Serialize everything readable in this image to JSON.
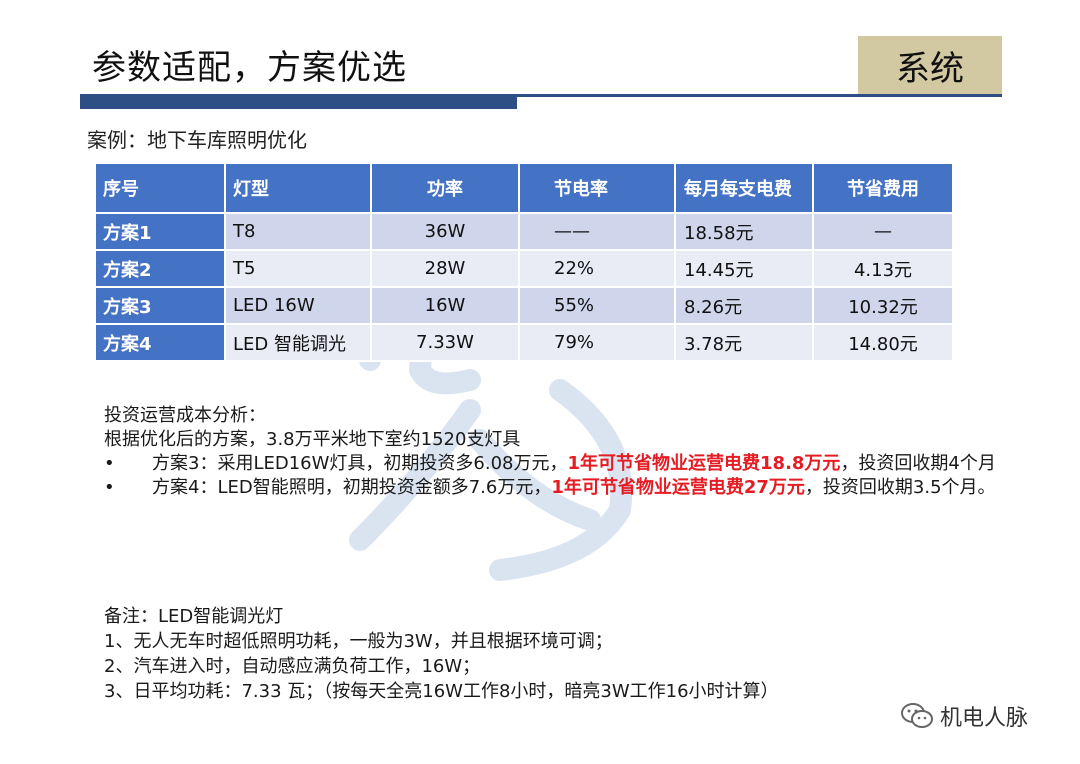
{
  "header": {
    "title": "参数适配，方案优选",
    "badge": "系统"
  },
  "case_title": "案例：地下车库照明优化",
  "table": {
    "headers": [
      "序号",
      "灯型",
      "功率",
      "节电率",
      "每月每支电费",
      "节省费用"
    ],
    "rows": [
      [
        "方案1",
        "T8",
        "36W",
        "——",
        "18.58元",
        "—"
      ],
      [
        "方案2",
        "T5",
        "28W",
        "22%",
        "14.45元",
        "4.13元"
      ],
      [
        "方案3",
        "LED 16W",
        "16W",
        "55%",
        "8.26元",
        "10.32元"
      ],
      [
        "方案4",
        "LED 智能调光",
        "7.33W",
        "79%",
        "3.78元",
        "14.80元"
      ]
    ]
  },
  "analysis": {
    "heading": "投资运营成本分析：",
    "intro": "根据优化后的方案，3.8万平米地下室约1520支灯具",
    "bullet_mark": "•",
    "bullets": [
      {
        "pre": "方案3：采用LED16W灯具，初期投资多6.08万元，",
        "highlight": "1年可节省物业运营电费18.8万元",
        "post": "，投资回收期4个月"
      },
      {
        "pre": "方案4：LED智能照明，初期投资金额多7.6万元，",
        "highlight": "1年可节省物业运营电费27万元",
        "post": "，投资回收期3.5个月。"
      }
    ]
  },
  "notes": {
    "title": "备注：LED智能调光灯",
    "items": [
      "1、无人无车时超低照明功耗，一般为3W，并且根据环境可调；",
      "2、汽车进入时，自动感应满负荷工作，16W；",
      "3、日平均功耗：7.33 瓦；（按每天全亮16W工作8小时，暗亮3W工作16小时计算）"
    ]
  },
  "watermark_brand": "机电人脉",
  "colors": {
    "table_header": "#4472c4",
    "accent_rule": "#2d4f86",
    "badge_bg": "#d2c9a2",
    "highlight": "#e51c23"
  }
}
